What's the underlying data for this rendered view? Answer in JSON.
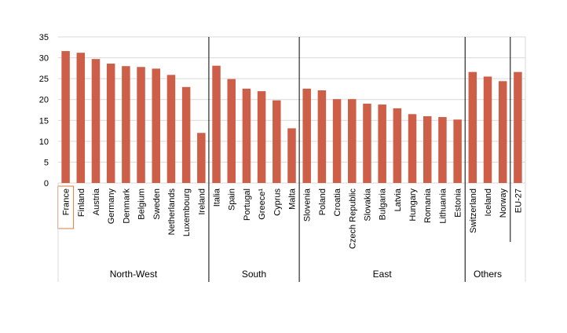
{
  "chart_data": {
    "type": "bar",
    "title": "",
    "xlabel": "",
    "ylabel": "",
    "ylim": [
      0,
      35
    ],
    "yticks": [
      0,
      5,
      10,
      15,
      20,
      25,
      30,
      35
    ],
    "grid": true,
    "bar_color": "#cd5f48",
    "highlight_color": "#e07b39",
    "highlight_category": "France",
    "categories": [
      "France",
      "Finland",
      "Austria",
      "Germany",
      "Denmark",
      "Belgium",
      "Sweden",
      "Netherlands",
      "Luxembourg",
      "Ireland",
      "Italia",
      "Spain",
      "Portugal",
      "Greece¹",
      "Cyprus",
      "Malta",
      "Slovenia",
      "Poland",
      "Croatia",
      "Czech Republic",
      "Slovakia",
      "Bulgaria",
      "Latvia",
      "Hungary",
      "Romania",
      "Lithuania",
      "Estonia",
      "Switzerland",
      "Iceland",
      "Norway",
      "EU-27"
    ],
    "values": [
      31.6,
      31.2,
      29.7,
      28.6,
      28.0,
      27.8,
      27.4,
      25.9,
      23.0,
      12.0,
      28.1,
      24.9,
      22.6,
      22.0,
      19.8,
      13.1,
      22.6,
      22.2,
      20.1,
      20.1,
      19.0,
      18.8,
      17.9,
      16.5,
      16.0,
      15.8,
      15.2,
      26.6,
      25.5,
      24.4,
      26.6
    ],
    "groups": [
      {
        "label": "North-West",
        "start": 0,
        "end": 9
      },
      {
        "label": "South",
        "start": 10,
        "end": 15
      },
      {
        "label": "East",
        "start": 16,
        "end": 26
      },
      {
        "label": "Others",
        "start": 27,
        "end": 29
      }
    ]
  }
}
